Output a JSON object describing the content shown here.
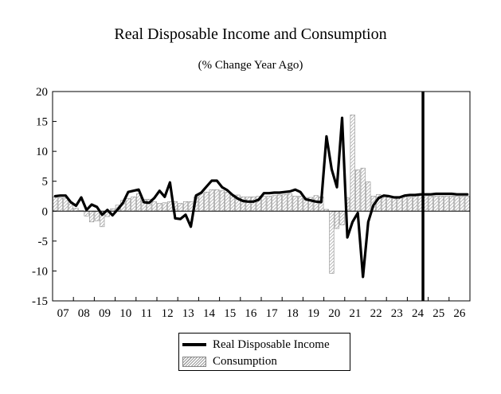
{
  "chart_data": {
    "type": "bar",
    "title": "Real Disposable Income and Consumption",
    "subtitle": "(% Change Year Ago)",
    "xlabel": "",
    "ylabel": "",
    "ylim": [
      -15,
      20
    ],
    "yticks": [
      "20",
      "15",
      "10",
      "5",
      "0",
      "-5",
      "-10",
      "-15"
    ],
    "x_tick_labels": [
      "07",
      "08",
      "09",
      "10",
      "11",
      "12",
      "13",
      "14",
      "15",
      "16",
      "17",
      "18",
      "19",
      "20",
      "21",
      "22",
      "23",
      "24",
      "25",
      "26"
    ],
    "x_range_years": [
      2007,
      2027
    ],
    "forecast_line_year": 2024.75,
    "legend_position": "bottom-center",
    "grid": false,
    "series": [
      {
        "name": "Real Disposable Income",
        "style": "line",
        "color": "#000000",
        "x": [
          2007.0,
          2007.25,
          2007.5,
          2007.75,
          2008.0,
          2008.25,
          2008.5,
          2008.75,
          2009.0,
          2009.25,
          2009.5,
          2009.75,
          2010.0,
          2010.25,
          2010.5,
          2010.75,
          2011.0,
          2011.25,
          2011.5,
          2011.75,
          2012.0,
          2012.25,
          2012.5,
          2012.75,
          2013.0,
          2013.25,
          2013.5,
          2013.75,
          2014.0,
          2014.25,
          2014.5,
          2014.75,
          2015.0,
          2015.25,
          2015.5,
          2015.75,
          2016.0,
          2016.25,
          2016.5,
          2016.75,
          2017.0,
          2017.25,
          2017.5,
          2017.75,
          2018.0,
          2018.25,
          2018.5,
          2018.75,
          2019.0,
          2019.25,
          2019.5,
          2019.75,
          2020.0,
          2020.25,
          2020.5,
          2020.75,
          2021.0,
          2021.25,
          2021.5,
          2021.75,
          2022.0,
          2022.25,
          2022.5,
          2022.75,
          2023.0,
          2023.25,
          2023.5,
          2023.75,
          2024.0,
          2024.25,
          2024.5,
          2024.75,
          2025.0,
          2025.25,
          2025.5,
          2025.75,
          2026.0,
          2026.25,
          2026.5,
          2026.75
        ],
        "values": [
          2.5,
          2.6,
          2.6,
          1.5,
          0.9,
          2.3,
          0.2,
          1.1,
          0.7,
          -0.6,
          0.2,
          -0.7,
          0.3,
          1.4,
          3.2,
          3.4,
          3.6,
          1.5,
          1.4,
          2.2,
          3.4,
          2.4,
          4.8,
          -1.2,
          -1.3,
          -0.6,
          -2.6,
          2.6,
          3.1,
          4.1,
          5.1,
          5.1,
          4.0,
          3.5,
          2.7,
          2.1,
          1.7,
          1.6,
          1.6,
          1.9,
          3.0,
          3.0,
          3.1,
          3.1,
          3.2,
          3.3,
          3.6,
          3.2,
          2.0,
          1.8,
          1.6,
          1.5,
          12.5,
          7.0,
          4.0,
          15.6,
          -4.4,
          -1.8,
          -0.3,
          -11.0,
          -1.8,
          1.0,
          2.2,
          2.6,
          2.5,
          2.3,
          2.3,
          2.6,
          2.7,
          2.7,
          2.8,
          2.8,
          2.8,
          2.9,
          2.9,
          2.9,
          2.9,
          2.8,
          2.8,
          2.8
        ]
      },
      {
        "name": "Consumption",
        "style": "bar",
        "color": "#9a9a9a",
        "x": [
          2007.0,
          2007.25,
          2007.5,
          2007.75,
          2008.0,
          2008.25,
          2008.5,
          2008.75,
          2009.0,
          2009.25,
          2009.5,
          2009.75,
          2010.0,
          2010.25,
          2010.5,
          2010.75,
          2011.0,
          2011.25,
          2011.5,
          2011.75,
          2012.0,
          2012.25,
          2012.5,
          2012.75,
          2013.0,
          2013.25,
          2013.5,
          2013.75,
          2014.0,
          2014.25,
          2014.5,
          2014.75,
          2015.0,
          2015.25,
          2015.5,
          2015.75,
          2016.0,
          2016.25,
          2016.5,
          2016.75,
          2017.0,
          2017.25,
          2017.5,
          2017.75,
          2018.0,
          2018.25,
          2018.5,
          2018.75,
          2019.0,
          2019.25,
          2019.5,
          2019.75,
          2020.0,
          2020.25,
          2020.5,
          2020.75,
          2021.0,
          2021.25,
          2021.5,
          2021.75,
          2022.0,
          2022.25,
          2022.5,
          2022.75,
          2023.0,
          2023.25,
          2023.5,
          2023.75,
          2024.0,
          2024.25,
          2024.5,
          2024.75,
          2025.0,
          2025.25,
          2025.5,
          2025.75,
          2026.0,
          2026.25,
          2026.5,
          2026.75
        ],
        "values": [
          2.4,
          2.2,
          2.2,
          1.5,
          0.5,
          0.1,
          -0.8,
          -1.8,
          -1.6,
          -2.6,
          -0.9,
          0.4,
          1.0,
          1.8,
          2.1,
          2.4,
          2.9,
          2.0,
          2.0,
          1.6,
          1.3,
          1.4,
          1.6,
          1.6,
          1.3,
          1.6,
          1.6,
          2.4,
          3.0,
          3.2,
          3.6,
          3.6,
          3.4,
          3.2,
          2.7,
          2.7,
          2.4,
          2.4,
          2.4,
          2.5,
          2.5,
          2.5,
          2.6,
          2.7,
          2.8,
          2.9,
          2.5,
          2.5,
          2.3,
          2.3,
          2.6,
          2.4,
          0.3,
          -10.4,
          -2.9,
          -2.3,
          2.2,
          16.1,
          6.9,
          7.2,
          4.9,
          2.5,
          2.8,
          2.6,
          2.5,
          2.4,
          2.4,
          2.4,
          2.3,
          2.6,
          2.6,
          2.7,
          2.5,
          2.5,
          2.5,
          2.5,
          2.5,
          2.5,
          2.5,
          2.5
        ]
      }
    ]
  },
  "legend": {
    "items": [
      "Real Disposable Income",
      "Consumption"
    ]
  }
}
